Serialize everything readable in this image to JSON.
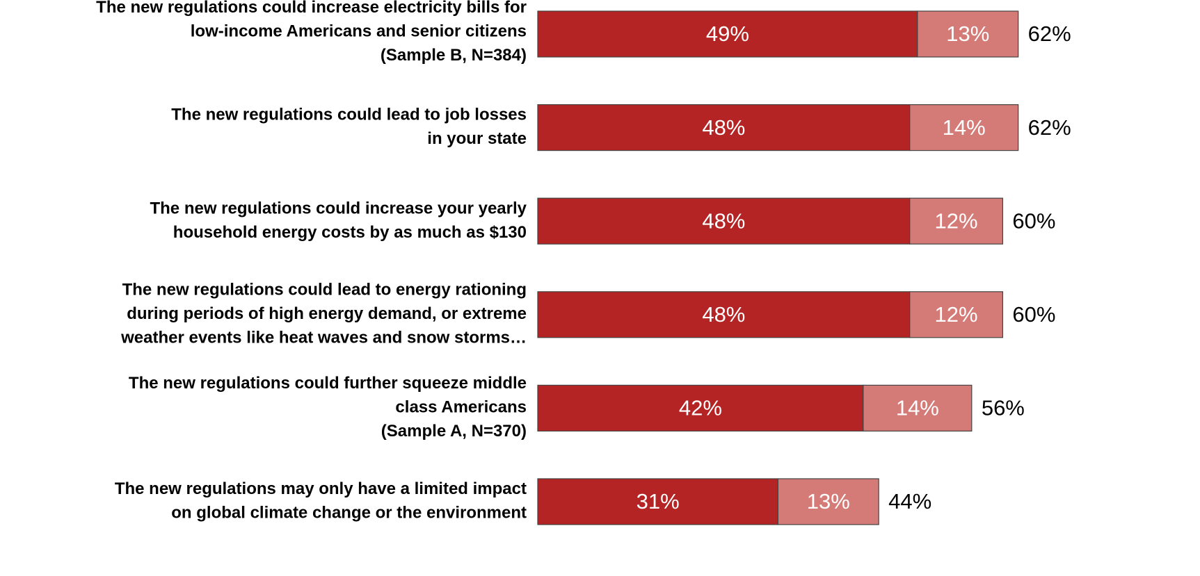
{
  "chart_data": {
    "type": "stacked_barh",
    "categories": [
      [
        "The new regulations could increase electricity bills for",
        "low-income Americans and senior citizens",
        "(Sample B, N=384)"
      ],
      [
        "The new regulations could lead to job losses",
        "in your state"
      ],
      [
        "The new regulations could increase your yearly",
        "household energy costs by as much as $130"
      ],
      [
        "The new regulations could lead to energy rationing",
        "during periods of high energy demand, or extreme",
        "weather events like heat waves and snow storms…"
      ],
      [
        "The new regulations could further squeeze middle",
        "class Americans",
        "(Sample A, N=370)"
      ],
      [
        "The new regulations may only have a limited impact",
        "on global climate change or the environment"
      ]
    ],
    "series": [
      {
        "color": "#b52424",
        "values": [
          49,
          48,
          48,
          48,
          42,
          31
        ],
        "value_labels": [
          "49%",
          "48%",
          "48%",
          "48%",
          "42%",
          "31%"
        ]
      },
      {
        "color": "#d47a77",
        "values": [
          13,
          14,
          12,
          12,
          14,
          13
        ],
        "value_labels": [
          "13%",
          "14%",
          "12%",
          "12%",
          "14%",
          "13%"
        ]
      }
    ],
    "totals": [
      62,
      62,
      60,
      60,
      56,
      44
    ],
    "total_labels": [
      "62%",
      "62%",
      "60%",
      "60%",
      "56%",
      "44%"
    ],
    "xlim": [
      0,
      100
    ]
  }
}
